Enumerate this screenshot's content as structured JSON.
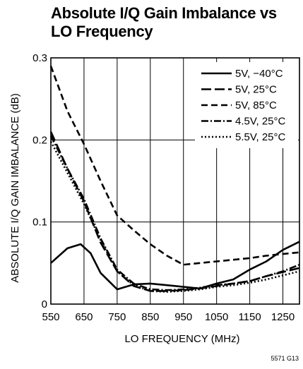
{
  "chart_data": {
    "type": "line",
    "title_lines": [
      "Absolute I/Q Gain Imbalance vs",
      "LO Frequency"
    ],
    "xlabel": "LO FREQUENCY (MHz)",
    "ylabel": "ABSOLUTE I/Q GAIN IMBALANCE (dB)",
    "xlim": [
      550,
      1300
    ],
    "ylim": [
      0,
      0.3
    ],
    "x_ticks": [
      550,
      650,
      750,
      850,
      950,
      1050,
      1150,
      1250
    ],
    "x_tick_labels": [
      "550",
      "650",
      "750",
      "850",
      "950",
      "1050",
      "1150",
      "1250"
    ],
    "y_ticks": [
      0,
      0.1,
      0.2,
      0.3
    ],
    "y_tick_labels": [
      "0",
      "0.1",
      "0.2",
      "0.3"
    ],
    "grid": true,
    "legend_position": "top-right",
    "series": [
      {
        "name": "5V, −40°C",
        "dash": "",
        "x": [
          550,
          600,
          640,
          670,
          700,
          750,
          800,
          850,
          900,
          950,
          1000,
          1050,
          1100,
          1150,
          1200,
          1250,
          1300
        ],
        "y": [
          0.05,
          0.068,
          0.073,
          0.062,
          0.038,
          0.018,
          0.024,
          0.025,
          0.023,
          0.021,
          0.019,
          0.025,
          0.03,
          0.042,
          0.052,
          0.066,
          0.076
        ]
      },
      {
        "name": "5V, 25°C",
        "dash": "14,5",
        "x": [
          550,
          600,
          650,
          700,
          750,
          800,
          850,
          900,
          950,
          1000,
          1050,
          1100,
          1150,
          1200,
          1250,
          1300
        ],
        "y": [
          0.21,
          0.165,
          0.125,
          0.075,
          0.04,
          0.022,
          0.016,
          0.016,
          0.017,
          0.019,
          0.022,
          0.025,
          0.028,
          0.034,
          0.039,
          0.044
        ]
      },
      {
        "name": "5V, 85°C",
        "dash": "9,5",
        "x": [
          550,
          600,
          650,
          700,
          750,
          800,
          850,
          900,
          950,
          1000,
          1050,
          1100,
          1150,
          1200,
          1250,
          1300
        ],
        "y": [
          0.29,
          0.235,
          0.195,
          0.15,
          0.108,
          0.09,
          0.073,
          0.059,
          0.048,
          0.05,
          0.052,
          0.054,
          0.056,
          0.059,
          0.061,
          0.063
        ]
      },
      {
        "name": "4.5V, 25°C",
        "dash": "10,3,2,3",
        "x": [
          550,
          600,
          650,
          700,
          750,
          800,
          850,
          900,
          950,
          1000,
          1050,
          1100,
          1150,
          1200,
          1250,
          1300
        ],
        "y": [
          0.205,
          0.165,
          0.128,
          0.08,
          0.042,
          0.025,
          0.018,
          0.017,
          0.018,
          0.02,
          0.023,
          0.025,
          0.028,
          0.034,
          0.04,
          0.048
        ]
      },
      {
        "name": "5.5V, 25°C",
        "dash": "2,3",
        "x": [
          550,
          600,
          650,
          700,
          750,
          800,
          850,
          900,
          950,
          1000,
          1050,
          1100,
          1150,
          1200,
          1250,
          1300
        ],
        "y": [
          0.198,
          0.16,
          0.122,
          0.078,
          0.04,
          0.023,
          0.016,
          0.015,
          0.016,
          0.018,
          0.021,
          0.023,
          0.026,
          0.03,
          0.035,
          0.04
        ]
      }
    ]
  },
  "figure_id": "5571 G13"
}
